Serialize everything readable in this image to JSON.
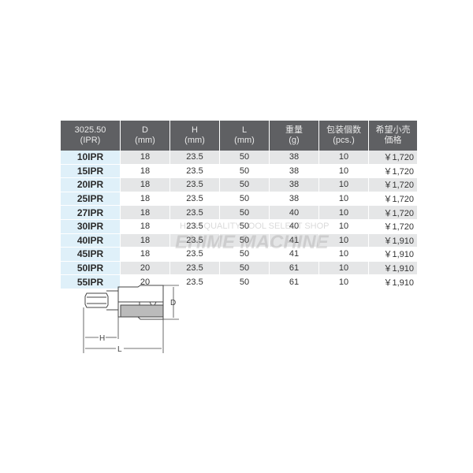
{
  "table": {
    "headers": [
      [
        "3025.50",
        "(IPR)"
      ],
      [
        "D",
        "(mm)"
      ],
      [
        "H",
        "(mm)"
      ],
      [
        "L",
        "(mm)"
      ],
      [
        "重量",
        "(g)"
      ],
      [
        "包装個数",
        "(pcs.)"
      ],
      [
        "希望小売",
        "価格"
      ]
    ],
    "rows": [
      [
        "10IPR",
        "18",
        "23.5",
        "50",
        "38",
        "10",
        "￥1,720"
      ],
      [
        "15IPR",
        "18",
        "23.5",
        "50",
        "38",
        "10",
        "￥1,720"
      ],
      [
        "20IPR",
        "18",
        "23.5",
        "50",
        "38",
        "10",
        "￥1,720"
      ],
      [
        "25IPR",
        "18",
        "23.5",
        "50",
        "38",
        "10",
        "￥1,720"
      ],
      [
        "27IPR",
        "18",
        "23.5",
        "50",
        "40",
        "10",
        "￥1,720"
      ],
      [
        "30IPR",
        "18",
        "23.5",
        "50",
        "40",
        "10",
        "￥1,720"
      ],
      [
        "40IPR",
        "18",
        "23.5",
        "50",
        "41",
        "10",
        "￥1,910"
      ],
      [
        "45IPR",
        "18",
        "23.5",
        "50",
        "41",
        "10",
        "￥1,910"
      ],
      [
        "50IPR",
        "20",
        "23.5",
        "50",
        "61",
        "10",
        "￥1,910"
      ],
      [
        "55IPR",
        "20",
        "23.5",
        "50",
        "61",
        "10",
        "￥1,910"
      ]
    ]
  },
  "watermark": {
    "line1": "HIGH QUALITY TOOL SELECT SHOP",
    "line2": "EHIME MACHINE"
  },
  "drawing": {
    "label_d": "D",
    "label_h": "H",
    "label_l": "L"
  },
  "colors": {
    "header_bg": "#5f6063",
    "model_bg": "#dff0f9",
    "stripe": "#e5e6e7"
  }
}
